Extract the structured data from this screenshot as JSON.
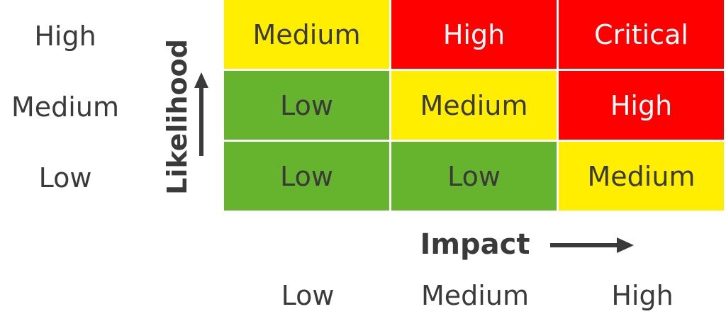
{
  "likelihood": {
    "title": "Likelihood",
    "levels": [
      "High",
      "Medium",
      "Low"
    ]
  },
  "impact": {
    "title": "Impact",
    "levels": [
      "Low",
      "Medium",
      "High"
    ]
  },
  "matrix": {
    "rows": [
      {
        "cells": [
          {
            "label": "Medium",
            "color": "#ffee00",
            "text_color": "#3a3a3a"
          },
          {
            "label": "High",
            "color": "#ff0000",
            "text_color": "#ffffff"
          },
          {
            "label": "Critical",
            "color": "#ff0000",
            "text_color": "#ffffff"
          }
        ]
      },
      {
        "cells": [
          {
            "label": "Low",
            "color": "#66b32e",
            "text_color": "#3a3a3a"
          },
          {
            "label": "Medium",
            "color": "#ffee00",
            "text_color": "#3a3a3a"
          },
          {
            "label": "High",
            "color": "#ff0000",
            "text_color": "#ffffff"
          }
        ]
      },
      {
        "cells": [
          {
            "label": "Low",
            "color": "#66b32e",
            "text_color": "#3a3a3a"
          },
          {
            "label": "Low",
            "color": "#66b32e",
            "text_color": "#3a3a3a"
          },
          {
            "label": "Medium",
            "color": "#ffee00",
            "text_color": "#3a3a3a"
          }
        ]
      }
    ]
  },
  "colors": {
    "text": "#3a3a3a",
    "arrow": "#3a3a3a",
    "gridline": "#ffffff"
  }
}
